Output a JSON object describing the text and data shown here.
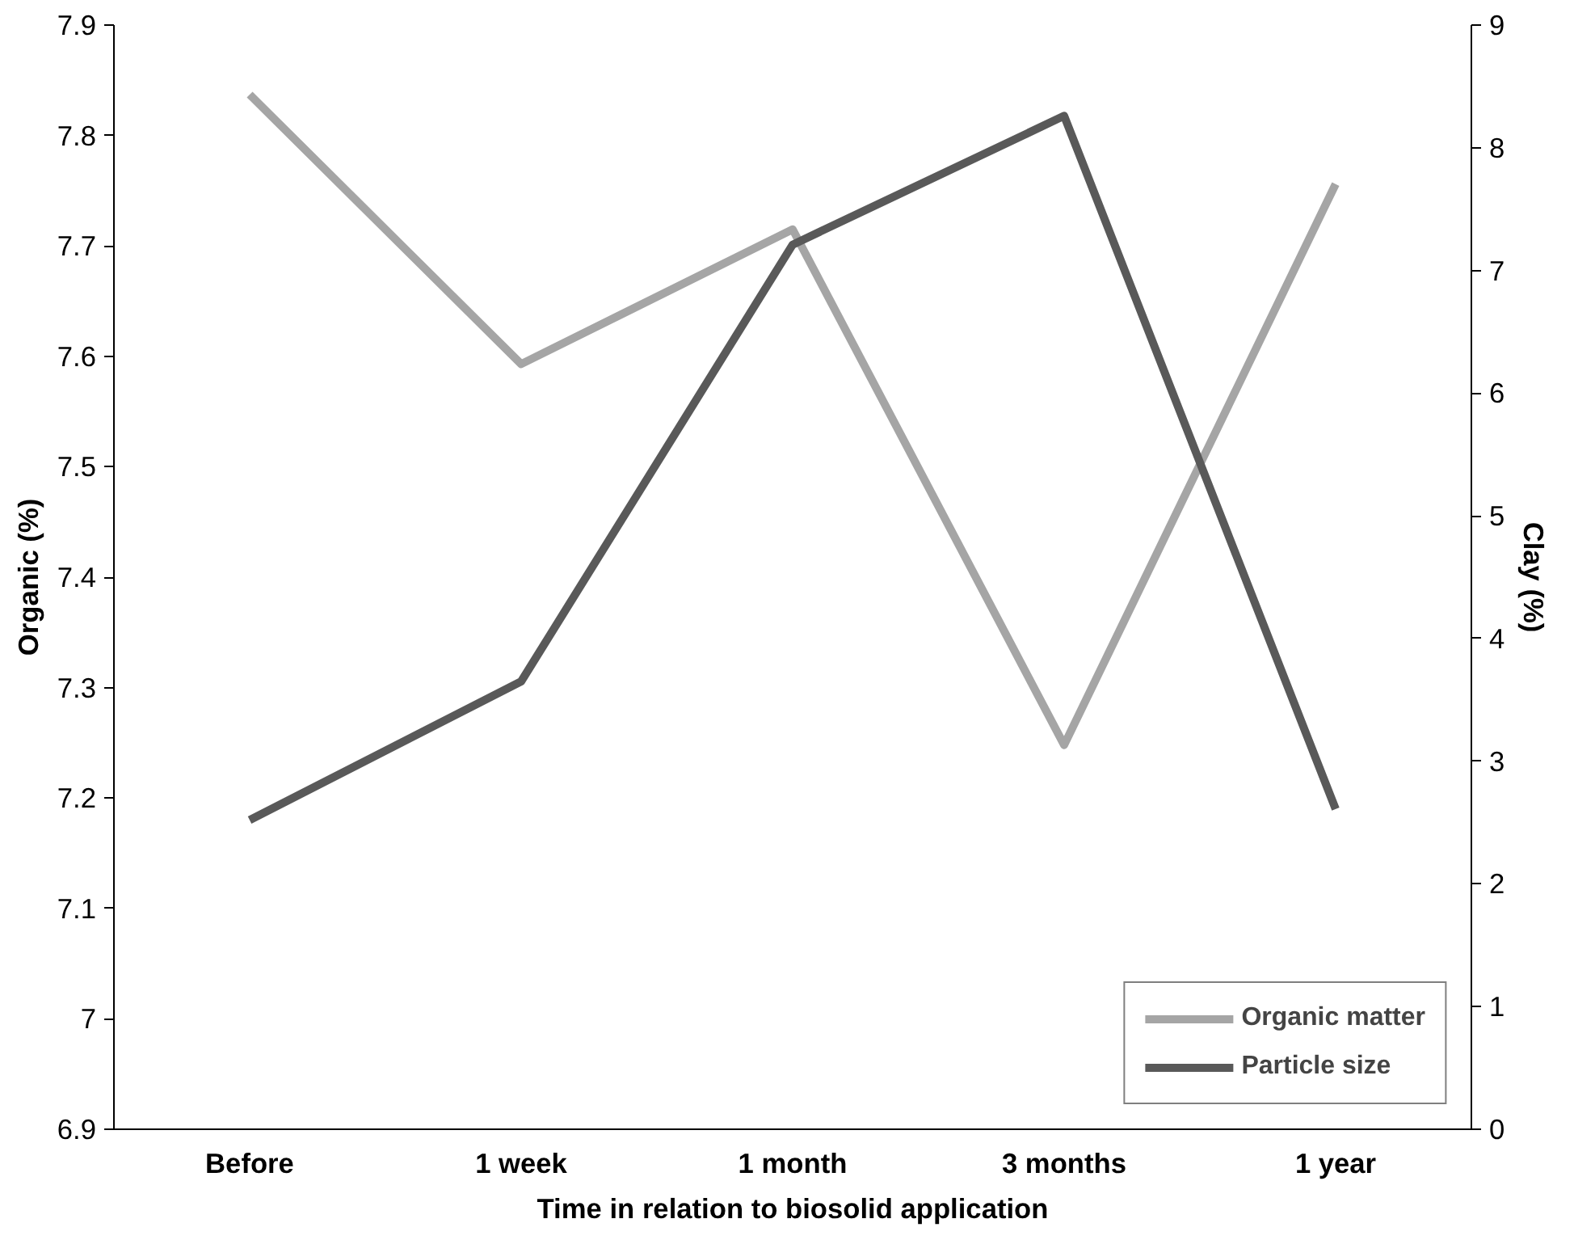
{
  "chart_data": {
    "type": "line",
    "xlabel": "Time in relation to biosolid application",
    "ylabel": "Organic (%)",
    "y2label": "Clay (%)",
    "categories": [
      "Before",
      "1 week",
      "1 month",
      "3 months",
      "1 year"
    ],
    "series": [
      {
        "name": "Organic matter",
        "color": "#a5a5a5",
        "values": [
          7.837,
          7.593,
          7.715,
          7.248,
          7.756
        ]
      },
      {
        "name": "Particle size",
        "color": "#595959",
        "axis": "y2",
        "values": [
          2.52,
          3.65,
          7.21,
          8.26,
          2.61
        ]
      }
    ],
    "ylim": [
      6.9,
      7.9
    ],
    "yticks": [
      6.9,
      7.0,
      7.1,
      7.2,
      7.3,
      7.4,
      7.5,
      7.6,
      7.7,
      7.8,
      7.9
    ],
    "y2lim": [
      0,
      9
    ],
    "y2ticks": [
      0,
      1,
      2,
      3,
      4,
      5,
      6,
      7,
      8,
      9
    ],
    "grid": false,
    "legend": "bottom right",
    "marker": "none",
    "line_style": "solid"
  }
}
